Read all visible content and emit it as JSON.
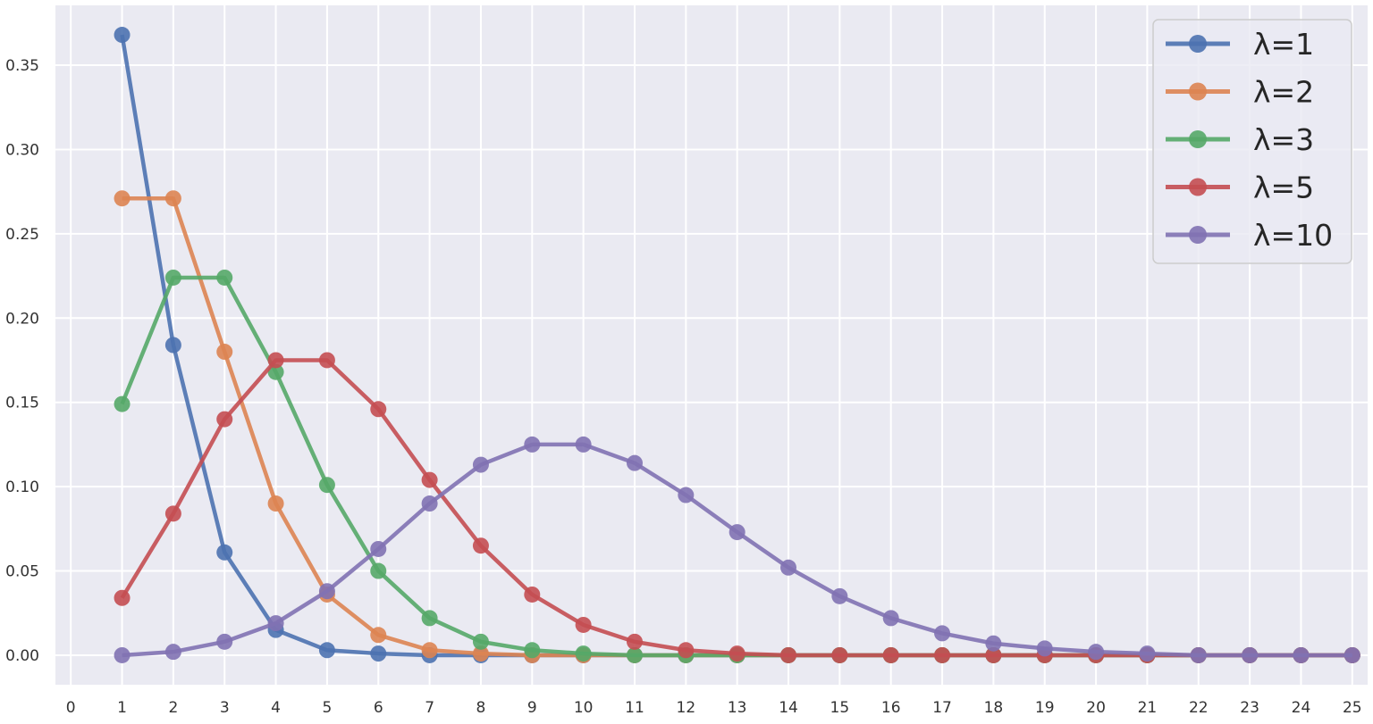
{
  "chart_data": {
    "type": "line",
    "title": "",
    "xlabel": "",
    "ylabel": "",
    "xlim": [
      -0.3,
      25.3
    ],
    "ylim": [
      -0.0175,
      0.3855
    ],
    "x_ticks": [
      0,
      1,
      2,
      3,
      4,
      5,
      6,
      7,
      8,
      9,
      10,
      11,
      12,
      13,
      14,
      15,
      16,
      17,
      18,
      19,
      20,
      21,
      22,
      23,
      24,
      25
    ],
    "x_tick_labels": [
      "0",
      "1",
      "2",
      "3",
      "4",
      "5",
      "6",
      "7",
      "8",
      "9",
      "10",
      "11",
      "12",
      "13",
      "14",
      "15",
      "16",
      "17",
      "18",
      "19",
      "20",
      "21",
      "22",
      "23",
      "24",
      "25"
    ],
    "y_ticks": [
      0,
      0.05,
      0.1,
      0.15,
      0.2,
      0.25,
      0.3,
      0.35
    ],
    "y_tick_labels": [
      "0.00",
      "0.05",
      "0.10",
      "0.15",
      "0.20",
      "0.25",
      "0.30",
      "0.35"
    ],
    "grid": true,
    "background": "#eaeaf2",
    "legend_position": "top-right",
    "x": [
      1,
      2,
      3,
      4,
      5,
      6,
      7,
      8,
      9,
      10,
      11,
      12,
      13,
      14,
      15,
      16,
      17,
      18,
      19,
      20,
      21,
      22,
      23,
      24,
      25
    ],
    "series": [
      {
        "name": "λ=1",
        "color": "#4c72b0",
        "values": [
          0.368,
          0.184,
          0.061,
          0.015,
          0.003,
          0.001,
          0.0,
          0.0,
          0.0,
          0.0,
          0.0,
          0.0,
          0.0,
          0.0,
          0.0,
          0.0,
          0.0,
          0.0,
          0.0,
          0.0,
          0.0,
          0.0,
          0.0,
          0.0,
          0.0
        ]
      },
      {
        "name": "λ=2",
        "color": "#dd8452",
        "values": [
          0.271,
          0.271,
          0.18,
          0.09,
          0.036,
          0.012,
          0.003,
          0.001,
          0.0,
          0.0,
          0.0,
          0.0,
          0.0,
          0.0,
          0.0,
          0.0,
          0.0,
          0.0,
          0.0,
          0.0,
          0.0,
          0.0,
          0.0,
          0.0,
          0.0
        ]
      },
      {
        "name": "λ=3",
        "color": "#55a868",
        "values": [
          0.149,
          0.224,
          0.224,
          0.168,
          0.101,
          0.05,
          0.022,
          0.008,
          0.003,
          0.001,
          0.0,
          0.0,
          0.0,
          0.0,
          0.0,
          0.0,
          0.0,
          0.0,
          0.0,
          0.0,
          0.0,
          0.0,
          0.0,
          0.0,
          0.0
        ]
      },
      {
        "name": "λ=5",
        "color": "#c44e52",
        "values": [
          0.034,
          0.084,
          0.14,
          0.175,
          0.175,
          0.146,
          0.104,
          0.065,
          0.036,
          0.018,
          0.008,
          0.003,
          0.001,
          0.0,
          0.0,
          0.0,
          0.0,
          0.0,
          0.0,
          0.0,
          0.0,
          0.0,
          0.0,
          0.0,
          0.0
        ]
      },
      {
        "name": "λ=10",
        "color": "#8172b3",
        "values": [
          0.0,
          0.002,
          0.008,
          0.019,
          0.038,
          0.063,
          0.09,
          0.113,
          0.125,
          0.125,
          0.114,
          0.095,
          0.073,
          0.052,
          0.035,
          0.022,
          0.013,
          0.007,
          0.004,
          0.002,
          0.001,
          0.0,
          0.0,
          0.0,
          0.0
        ]
      }
    ]
  }
}
